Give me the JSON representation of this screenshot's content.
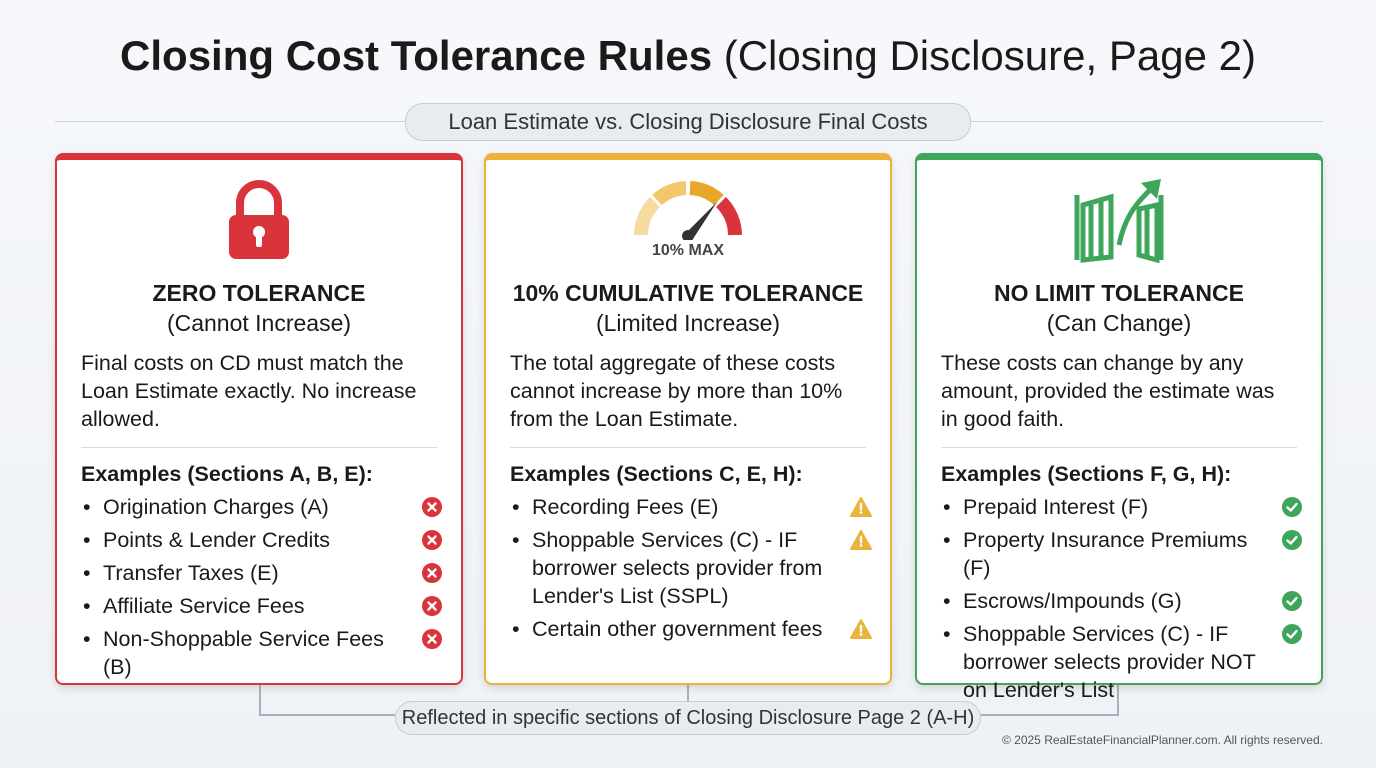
{
  "header": {
    "title_bold": "Closing Cost Tolerance Rules",
    "title_rest": "(Closing Disclosure, Page 2)",
    "subtitle": "Loan Estimate vs. Closing Disclosure Final Costs"
  },
  "cards": [
    {
      "heading": "ZERO TOLERANCE",
      "subheading": "(Cannot Increase)",
      "description": "Final costs on CD must match the Loan Estimate exactly. No increase allowed.",
      "examples_title": "Examples (Sections A, B, E):",
      "items": [
        "Origination Charges (A)",
        "Points & Lender Credits",
        "Transfer Taxes (E)",
        "Affiliate Service Fees",
        "Non-Shoppable Service Fees (B)"
      ]
    },
    {
      "icon_label": "10% MAX",
      "heading": "10% CUMULATIVE TOLERANCE",
      "subheading": "(Limited Increase)",
      "description": "The total aggregate of these costs cannot increase by more than 10% from the Loan Estimate.",
      "examples_title": "Examples (Sections C, E, H):",
      "items": [
        "Recording Fees (E)",
        "Shoppable Services (C) - IF borrower selects provider from Lender's List (SSPL)",
        "Certain other government fees"
      ]
    },
    {
      "heading": "NO LIMIT TOLERANCE",
      "subheading": "(Can Change)",
      "description": "These costs can change by any amount, provided the estimate was in good faith.",
      "examples_title": "Examples (Sections F, G, H):",
      "items": [
        "Prepaid Interest (F)",
        "Property Insurance Premiums (F)",
        "Escrows/Impounds (G)",
        "Shoppable Services (C) - IF borrower selects provider NOT on Lender's List"
      ]
    }
  ],
  "footer": {
    "note": "Reflected in specific sections of Closing Disclosure Page 2 (A-H)",
    "copyright": "© 2025 RealEstateFinancialPlanner.com. All rights reserved."
  }
}
